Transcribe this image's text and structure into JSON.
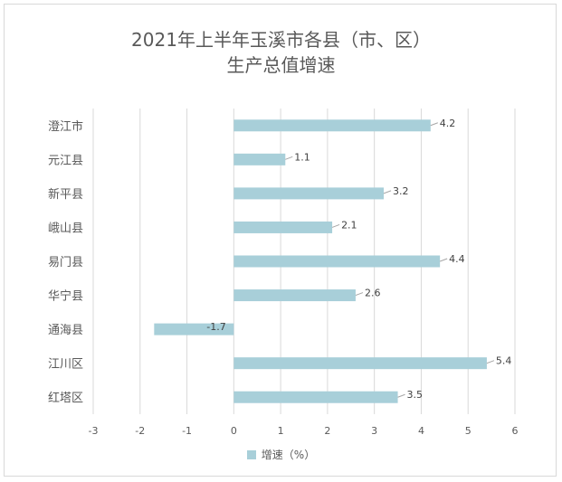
{
  "chart_data": {
    "type": "bar",
    "orientation": "horizontal",
    "title_line1": "2021年上半年玉溪市各县（市、区）",
    "title_line2": "生产总值增速",
    "categories": [
      "澄江市",
      "元江县",
      "新平县",
      "峨山县",
      "易门县",
      "华宁县",
      "通海县",
      "江川区",
      "红塔区"
    ],
    "series": [
      {
        "name": "增速（%）",
        "values": [
          4.2,
          1.1,
          3.2,
          2.1,
          4.4,
          2.6,
          -1.7,
          5.4,
          3.5
        ],
        "color": "#a8cfd9"
      }
    ],
    "xlim": [
      -3,
      6
    ],
    "xticks": [
      "-3",
      "-2",
      "-1",
      "0",
      "1",
      "2",
      "3",
      "4",
      "5",
      "6"
    ],
    "grid": "vertical",
    "legend_position": "bottom"
  }
}
